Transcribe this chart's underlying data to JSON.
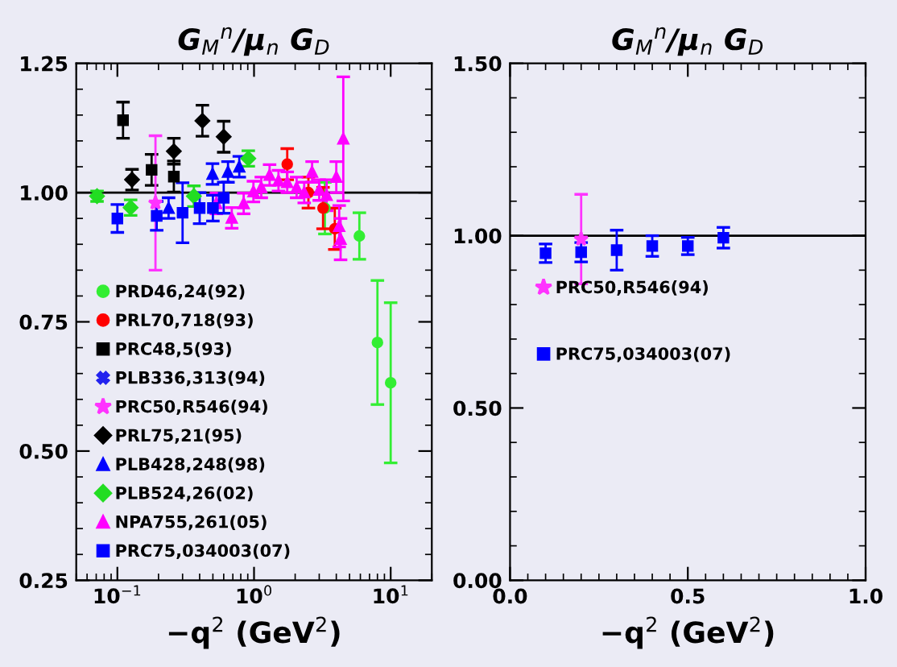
{
  "chart_data": [
    {
      "type": "scatter",
      "title": "G$_{M}$$^{n}$/μ$_{n}$ G$_{D}$",
      "xlabel": "−q$^{2}$ (GeV$^{2}$)",
      "log": "x",
      "xlim": [
        0.05,
        20
      ],
      "xticks": [
        {
          "value": 0.1,
          "label": "10$^{−1}$"
        },
        {
          "value": 1,
          "label": "10$^{0}$"
        },
        {
          "value": 10,
          "label": "10$^{1}$"
        }
      ],
      "ylim": [
        0.25,
        1.25
      ],
      "yticks": [
        {
          "value": 0.25,
          "label": "0.25"
        },
        {
          "value": 0.5,
          "label": "0.50"
        },
        {
          "value": 0.75,
          "label": "0.75"
        },
        {
          "value": 1.0,
          "label": "1.00"
        },
        {
          "value": 1.25,
          "label": "1.25"
        }
      ],
      "ref_lines": [
        {
          "axis": "y",
          "value": 1.0,
          "color": "#000000"
        }
      ],
      "legend": "bottom left",
      "grid": false,
      "series": [
        {
          "name": "PRD46,24(92)",
          "color": "#33ee33",
          "marker": "circle",
          "x": [
            3.3,
            5.9,
            8.0,
            10.0
          ],
          "values": [
            0.97,
            0.916,
            0.71,
            0.632
          ],
          "errors": [
            0.05,
            0.045,
            0.12,
            0.155
          ]
        },
        {
          "name": "PRL70,718(93)",
          "color": "#ff0000",
          "marker": "circle",
          "x": [
            1.75,
            2.5,
            3.2,
            3.9
          ],
          "values": [
            1.055,
            1.0,
            0.97,
            0.93
          ],
          "errors": [
            0.03,
            0.03,
            0.04,
            0.04
          ]
        },
        {
          "name": "PRC48,5(93)",
          "color": "#000000",
          "marker": "square",
          "x": [
            0.11,
            0.178,
            0.259
          ],
          "values": [
            1.14,
            1.044,
            1.031
          ],
          "errors": [
            0.035,
            0.03,
            0.03
          ]
        },
        {
          "name": "PLB336,313(94)",
          "color": "#2222ee",
          "marker": "cross"
        },
        {
          "name": "PRC50,R546(94)",
          "color": "#ff33ff",
          "marker": "star",
          "x": [
            0.19
          ],
          "values": [
            0.98
          ],
          "errors": [
            0.13
          ]
        },
        {
          "name": "PRL75,21(95)",
          "color": "#000000",
          "marker": "diamond",
          "x": [
            0.128,
            0.259,
            0.419,
            0.6
          ],
          "values": [
            1.025,
            1.08,
            1.139,
            1.108
          ],
          "errors": [
            0.02,
            0.025,
            0.03,
            0.03
          ]
        },
        {
          "name": "PLB428,248(98)",
          "color": "#0000ff",
          "marker": "triangle",
          "x": [
            0.237,
            0.497,
            0.645,
            0.78
          ],
          "values": [
            0.97,
            1.036,
            1.04,
            1.05
          ],
          "errors": [
            0.02,
            0.02,
            0.02,
            0.02
          ]
        },
        {
          "name": "PLB524,26(02)",
          "color": "#22dd22",
          "marker": "diamond",
          "x": [
            0.071,
            0.125,
            0.363,
            0.908
          ],
          "values": [
            0.993,
            0.971,
            0.993,
            1.066
          ],
          "errors": [
            0.01,
            0.015,
            0.02,
            0.015
          ]
        },
        {
          "name": "NPA755,261(05)",
          "color": "#ff00ff",
          "marker": "triangle",
          "x": [
            0.53,
            0.687,
            0.84,
            0.99,
            1.13,
            1.3,
            1.51,
            1.75,
            2.05,
            2.33,
            2.66,
            3.0,
            3.4,
            4.0,
            4.2,
            4.3,
            4.5
          ],
          "values": [
            0.979,
            0.951,
            0.979,
            1.002,
            1.01,
            1.034,
            1.023,
            1.02,
            1.01,
            1.0,
            1.04,
            1.005,
            0.995,
            1.03,
            0.935,
            0.91,
            1.104
          ],
          "errors": [
            0.02,
            0.02,
            0.02,
            0.02,
            0.02,
            0.02,
            0.02,
            0.02,
            0.02,
            0.02,
            0.02,
            0.02,
            0.03,
            0.03,
            0.04,
            0.04,
            0.12
          ]
        },
        {
          "name": "PRC75,034003(07)",
          "color": "#0000ff",
          "marker": "square",
          "x": [
            0.1,
            0.194,
            0.3,
            0.4,
            0.5,
            0.6
          ],
          "values": [
            0.95,
            0.955,
            0.961,
            0.97,
            0.97,
            0.99
          ],
          "errors": [
            0.027,
            0.028,
            0.058,
            0.03,
            0.025,
            0.03
          ]
        }
      ]
    },
    {
      "type": "scatter",
      "title": "G$_{M}$$^{n}$/μ$_{n}$ G$_{D}$",
      "xlabel": "−q$^{2}$ (GeV$^{2}$)",
      "xlim": [
        0.0,
        1.0
      ],
      "xticks": [
        {
          "value": 0.0,
          "label": "0.0"
        },
        {
          "value": 0.5,
          "label": "0.5"
        },
        {
          "value": 1.0,
          "label": "1.0"
        }
      ],
      "ylim": [
        0.0,
        1.5
      ],
      "yticks": [
        {
          "value": 0.0,
          "label": "0.00"
        },
        {
          "value": 0.5,
          "label": "0.50"
        },
        {
          "value": 1.0,
          "label": "1.00"
        },
        {
          "value": 1.5,
          "label": "1.50"
        }
      ],
      "ref_lines": [
        {
          "axis": "y",
          "value": 1.0,
          "color": "#000000"
        }
      ],
      "legend": "left",
      "grid": false,
      "series": [
        {
          "name": "PRC50,R546(94)",
          "color": "#ff33ff",
          "marker": "star",
          "x": [
            0.2
          ],
          "values": [
            0.99
          ],
          "errors": [
            0.13
          ]
        },
        {
          "name": "PRC75,034003(07)",
          "color": "#0000ff",
          "marker": "square",
          "x": [
            0.1,
            0.2,
            0.3,
            0.4,
            0.5,
            0.6
          ],
          "values": [
            0.949,
            0.952,
            0.958,
            0.97,
            0.97,
            0.994
          ],
          "errors": [
            0.027,
            0.028,
            0.058,
            0.03,
            0.025,
            0.03
          ]
        }
      ]
    }
  ]
}
